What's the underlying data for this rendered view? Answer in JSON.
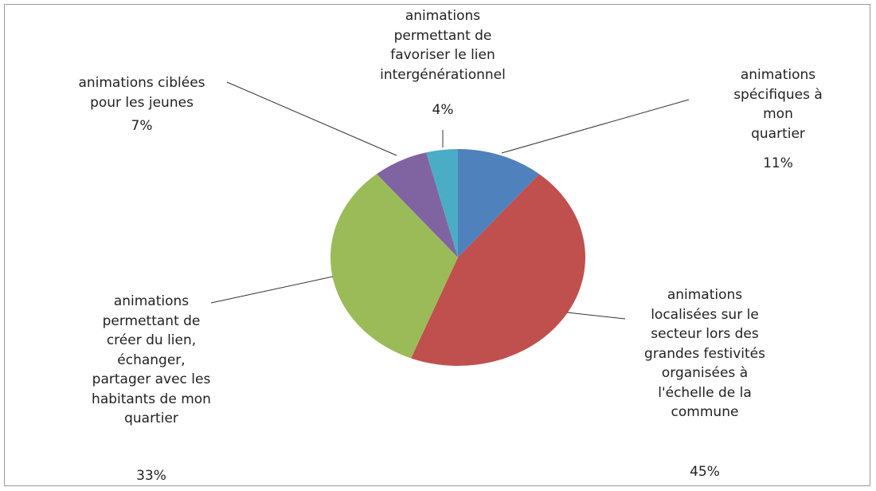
{
  "chart_data": {
    "type": "pie",
    "categories": [
      "animations\nspécifiques à mon\nquartier",
      "animations\nlocalisées sur le\nsecteur lors des\ngrandes festivités\norganisées à\nl'échelle de la\ncommune",
      "animations\npermettant de\ncréer du lien,\néchanger,\npartager avec les\nhabitants de mon\nquartier",
      "animations ciblées\npour les jeunes",
      "animations\npermettant de\nfavoriser le lien\nintergénérationnel"
    ],
    "values": [
      11,
      45,
      33,
      7,
      4
    ],
    "value_labels": [
      "11%",
      "45%",
      "33%",
      "7%",
      "4%"
    ],
    "colors": [
      "#4f81bd",
      "#c0504d",
      "#9bbb59",
      "#8064a2",
      "#4bacc6"
    ]
  }
}
